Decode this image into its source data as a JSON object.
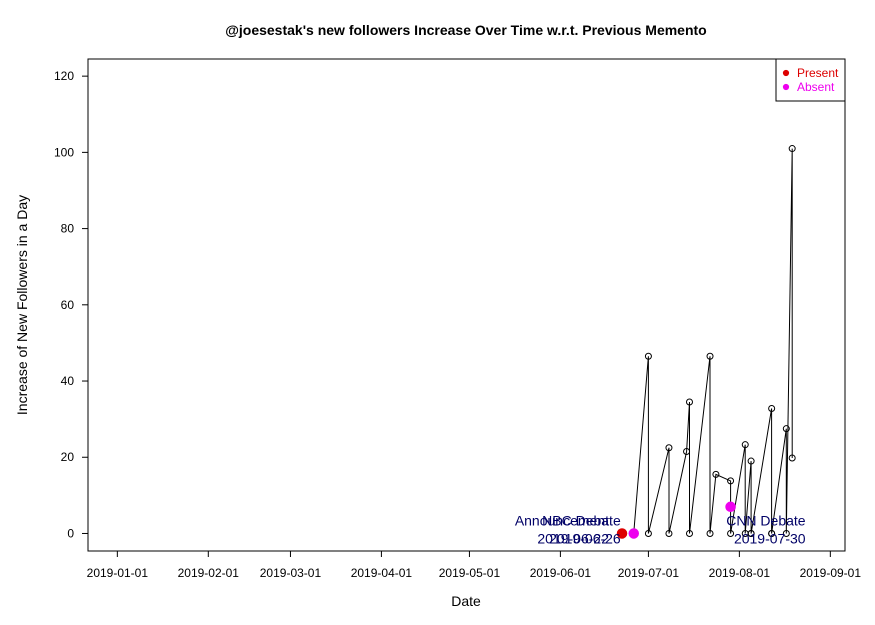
{
  "chart_data": {
    "type": "line",
    "title": "@joesestak's new followers Increase Over Time w.r.t. Previous Memento",
    "xlabel": "Date",
    "ylabel": "Increase of New Followers in a Day",
    "x_range": [
      "2018-12-22",
      "2019-09-06"
    ],
    "ylim": [
      -4.6,
      124.5
    ],
    "x_ticks": [
      "2019-01-01",
      "2019-02-01",
      "2019-03-01",
      "2019-04-01",
      "2019-05-01",
      "2019-06-01",
      "2019-07-01",
      "2019-08-01",
      "2019-09-01"
    ],
    "y_ticks": [
      0,
      20,
      40,
      60,
      80,
      100,
      120
    ],
    "grid": false,
    "legend_position": "top-right",
    "series": [
      {
        "name": "followers",
        "style": "line-with-open-circles",
        "color": "#000000",
        "points": [
          {
            "x": "2019-06-26",
            "y": 0
          },
          {
            "x": "2019-07-01",
            "y": 46.5
          },
          {
            "x": "2019-07-01",
            "y": 0
          },
          {
            "x": "2019-07-08",
            "y": 22.5
          },
          {
            "x": "2019-07-08",
            "y": 0
          },
          {
            "x": "2019-07-14",
            "y": 21.5
          },
          {
            "x": "2019-07-15",
            "y": 34.5
          },
          {
            "x": "2019-07-15",
            "y": 0
          },
          {
            "x": "2019-07-22",
            "y": 46.5
          },
          {
            "x": "2019-07-22",
            "y": 0
          },
          {
            "x": "2019-07-24",
            "y": 15.5
          },
          {
            "x": "2019-07-29",
            "y": 13.8
          },
          {
            "x": "2019-07-29",
            "y": 0
          },
          {
            "x": "2019-08-03",
            "y": 23.3
          },
          {
            "x": "2019-08-03",
            "y": 0
          },
          {
            "x": "2019-08-05",
            "y": 19.0
          },
          {
            "x": "2019-08-05",
            "y": 0
          },
          {
            "x": "2019-08-05",
            "y": 0
          },
          {
            "x": "2019-08-12",
            "y": 32.8
          },
          {
            "x": "2019-08-12",
            "y": 0
          },
          {
            "x": "2019-08-12",
            "y": 0
          },
          {
            "x": "2019-08-17",
            "y": 27.5
          },
          {
            "x": "2019-08-17",
            "y": 0
          },
          {
            "x": "2019-08-19",
            "y": 101
          },
          {
            "x": "2019-08-19",
            "y": 19.8
          }
        ]
      }
    ],
    "markers": [
      {
        "label": "Present",
        "color": "#dd0000",
        "x": "2019-06-22",
        "y": 0
      },
      {
        "label": "Absent",
        "color": "#ee00ee",
        "x": "2019-06-26",
        "y": 0
      },
      {
        "label": "Absent",
        "color": "#ee00ee",
        "x": "2019-07-29",
        "y": 7
      }
    ],
    "legend": [
      {
        "label": "Present",
        "color": "#dd0000"
      },
      {
        "label": "Absent",
        "color": "#ee00ee"
      }
    ],
    "annotations": [
      {
        "line1": "Announcement",
        "line2": "2019-06-22",
        "x": "2019-06-22",
        "y": 0
      },
      {
        "line1": "NBC Debate",
        "line2": "2019-06-26",
        "x": "2019-06-26",
        "y": 0
      },
      {
        "line1": "CNN Debate",
        "line2": "2019-07-30",
        "x": "2019-08-28",
        "y": 0
      }
    ],
    "annotation_color": "#000066"
  }
}
